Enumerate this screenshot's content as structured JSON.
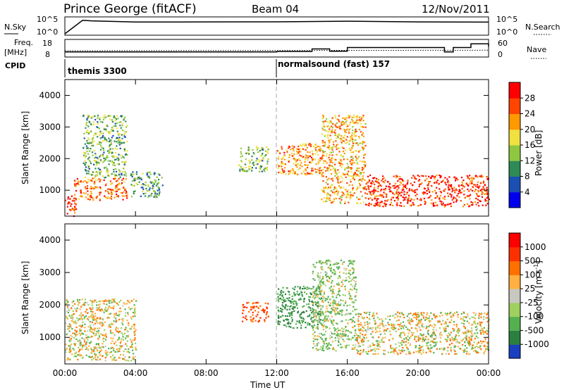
{
  "header": {
    "station": "Prince George (fitACF)",
    "beam": "Beam 04",
    "date": "12/Nov/2011"
  },
  "noise_panel": {
    "left_label": "N.Sky",
    "right_label": "N.Search",
    "left_ticks": [
      "10^5",
      "10^0"
    ],
    "right_ticks": [
      "10^5",
      "10^0"
    ]
  },
  "freq_panel": {
    "left_label_1": "Freq.",
    "left_label_2": "[MHz]",
    "right_label": "Nave",
    "left_ticks": [
      "18",
      "8"
    ],
    "right_ticks": [
      "60",
      "0"
    ]
  },
  "cpid": {
    "label": "CPID",
    "segments": [
      {
        "name": "themis 3300",
        "start_hour": 0
      },
      {
        "name": "normalsound (fast) 157",
        "start_hour": 12
      }
    ]
  },
  "x_axis": {
    "label": "Time UT",
    "ticks": [
      "00:00",
      "04:00",
      "08:00",
      "12:00",
      "16:00",
      "20:00",
      "00:00"
    ]
  },
  "power_panel": {
    "ylabel": "Slant Range [km]",
    "yticks": [
      "1000",
      "2000",
      "3000",
      "4000"
    ],
    "colorbar_label": "Power [dB]",
    "colorbar_ticks": [
      "4",
      "8",
      "12",
      "16",
      "20",
      "24",
      "28"
    ],
    "colors": [
      "#0000ee",
      "#1b4fb4",
      "#2e8b57",
      "#8fc840",
      "#f0e040",
      "#ff9900",
      "#ff4400",
      "#ff0000"
    ]
  },
  "velocity_panel": {
    "ylabel": "Slant Range [km]",
    "yticks": [
      "1000",
      "2000",
      "3000",
      "4000"
    ],
    "colorbar_label": "Velocity [m s",
    "colorbar_label_sup": "-1",
    "colorbar_label_end": "]",
    "colorbar_ticks": [
      "1000",
      "500",
      "100",
      "25",
      "-25",
      "-100",
      "-500",
      "-1000"
    ],
    "colors": [
      "#1a3fbf",
      "#2b8040",
      "#55b050",
      "#9fd060",
      "#c8c8c0",
      "#ffb040",
      "#ff7000",
      "#ff3000",
      "#ff0000"
    ]
  },
  "chart_data": [
    {
      "type": "heatmap",
      "title": "Power",
      "x_range_hours": [
        0,
        24
      ],
      "y_range_km": [
        180,
        4500
      ],
      "colorbar": {
        "label": "Power [dB]",
        "range": [
          0,
          30
        ]
      },
      "echo_regions": [
        {
          "t": [
            0.0,
            0.6
          ],
          "r": [
            200,
            900
          ],
          "power_db": 28
        },
        {
          "t": [
            0.5,
            3.5
          ],
          "r": [
            700,
            1400
          ],
          "power_db": 24
        },
        {
          "t": [
            1.0,
            3.5
          ],
          "r": [
            1400,
            3400
          ],
          "power_db": 12
        },
        {
          "t": [
            3.7,
            5.5
          ],
          "r": [
            800,
            1600
          ],
          "power_db": 10
        },
        {
          "t": [
            9.8,
            11.5
          ],
          "r": [
            1600,
            2400
          ],
          "power_db": 12
        },
        {
          "t": [
            12.0,
            14.5
          ],
          "r": [
            1500,
            2500
          ],
          "power_db": 22
        },
        {
          "t": [
            14.5,
            17.0
          ],
          "r": [
            600,
            3400
          ],
          "power_db": 20
        },
        {
          "t": [
            17.0,
            24.0
          ],
          "r": [
            500,
            1500
          ],
          "power_db": 28
        }
      ]
    },
    {
      "type": "heatmap",
      "title": "Velocity",
      "x_range_hours": [
        0,
        24
      ],
      "y_range_km": [
        180,
        4500
      ],
      "colorbar": {
        "label": "Velocity [m s^-1]",
        "range": [
          -1000,
          1000
        ]
      },
      "echo_regions": [
        {
          "t": [
            0.0,
            4.0
          ],
          "r": [
            300,
            2200
          ],
          "velocity": 0
        },
        {
          "t": [
            10.0,
            11.5
          ],
          "r": [
            1500,
            2100
          ],
          "velocity": -500
        },
        {
          "t": [
            12.0,
            14.5
          ],
          "r": [
            1300,
            2600
          ],
          "velocity": 500
        },
        {
          "t": [
            14.0,
            16.5
          ],
          "r": [
            600,
            3400
          ],
          "velocity": 100
        },
        {
          "t": [
            16.5,
            24.0
          ],
          "r": [
            500,
            1800
          ],
          "velocity": 0
        }
      ]
    },
    {
      "type": "line",
      "title": "Noise",
      "series": [
        {
          "name": "N.Sky",
          "x": [
            0,
            1,
            1.5,
            4,
            8,
            12,
            16,
            20,
            24
          ],
          "y": [
            1,
            60000,
            40000,
            15000,
            16000,
            18000,
            30000,
            16000,
            14000
          ]
        }
      ]
    },
    {
      "type": "line",
      "title": "Freq/Nave",
      "series": [
        {
          "name": "Freq",
          "x": [
            0,
            12,
            14,
            15,
            16,
            18,
            21,
            21.5,
            22,
            23,
            24
          ],
          "y": [
            10.5,
            10.8,
            12.5,
            11.0,
            13.5,
            13.5,
            13.5,
            10.5,
            13.5,
            16,
            14
          ]
        },
        {
          "name": "Nave",
          "x": [
            0,
            24
          ],
          "y": [
            20,
            22
          ]
        }
      ]
    }
  ]
}
